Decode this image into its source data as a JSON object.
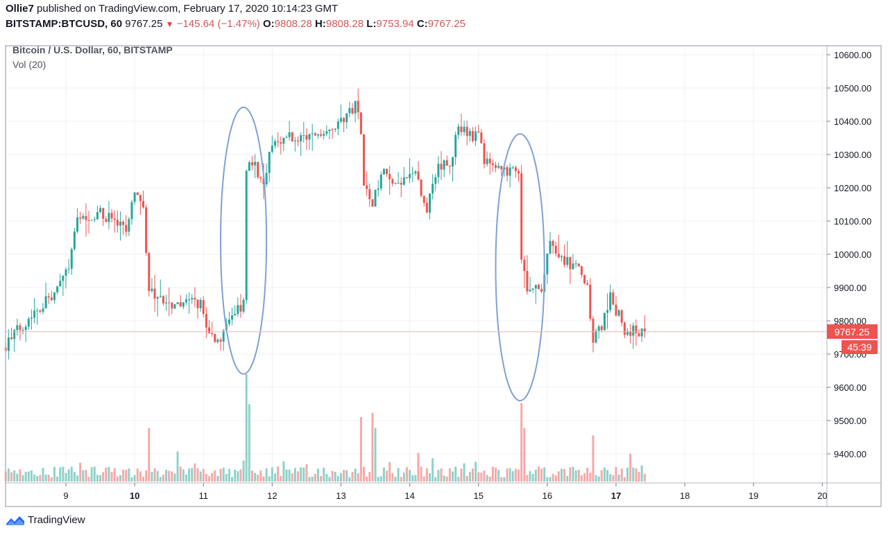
{
  "header": {
    "author": "Ollie7",
    "published_text": "published on TradingView.com, February 17, 2020 10:14:23 GMT",
    "symbol": "BITSTAMP:BTCUSD, 60",
    "last": "9767.25",
    "direction_icon": "triangle-down-icon",
    "change": "−145.64 (−1.47%)",
    "o_label": "O:",
    "o": "9808.28",
    "h_label": "H:",
    "h": "9808.28",
    "l_label": "L:",
    "l": "9753.94",
    "c_label": "C:",
    "c": "9767.25"
  },
  "legend": {
    "title": "Bitcoin / U.S. Dollar, 60, BITSTAMP",
    "volume": "Vol (20)"
  },
  "price_label": "9767.25",
  "countdown": "45:39",
  "footer": {
    "brand": "TradingView"
  },
  "colors": {
    "up": "#26a69a",
    "down": "#ef5350",
    "up_volume": "#8fd1c9",
    "down_volume": "#f5a9a8",
    "annotation": "#7f9fd6",
    "last_price": "#ef5350",
    "grid": "#eef1f5"
  },
  "chart_data": {
    "type": "candlestick",
    "interval": "60",
    "ylim": [
      9320,
      10650
    ],
    "y_ticks": [
      "10600.00",
      "10500.00",
      "10400.00",
      "10300.00",
      "10200.00",
      "10100.00",
      "10000.00",
      "9900.00",
      "9800.00",
      "9700.00",
      "9600.00",
      "9500.00",
      "9400.00"
    ],
    "x_ticks": [
      "9",
      "10",
      "11",
      "12",
      "13",
      "14",
      "15",
      "16",
      "17",
      "18",
      "19",
      "20"
    ],
    "x_range": [
      "2020-02-08 03:00",
      "2020-02-20 00:00"
    ],
    "grid": true,
    "last_price": 9767.25,
    "close_path": [
      [
        "2020-02-08 03:00",
        9730
      ],
      [
        "2020-02-08 13:00",
        9830
      ],
      [
        "2020-02-08 20:00",
        9880
      ],
      [
        "2020-02-09 01:00",
        9960
      ],
      [
        "2020-02-09 04:00",
        10100
      ],
      [
        "2020-02-09 07:00",
        10120
      ],
      [
        "2020-02-09 13:00",
        10120
      ],
      [
        "2020-02-09 21:00",
        10070
      ],
      [
        "2020-02-10 00:00",
        10190
      ],
      [
        "2020-02-10 03:00",
        10130
      ],
      [
        "2020-02-10 05:00",
        9900
      ],
      [
        "2020-02-10 07:00",
        9870
      ],
      [
        "2020-02-10 10:00",
        9850
      ],
      [
        "2020-02-10 16:00",
        9850
      ],
      [
        "2020-02-10 23:00",
        9850
      ],
      [
        "2020-02-11 02:00",
        9760
      ],
      [
        "2020-02-11 06:00",
        9740
      ],
      [
        "2020-02-11 11:00",
        9820
      ],
      [
        "2020-02-11 14:00",
        9860
      ],
      [
        "2020-02-11 15:00",
        10240
      ],
      [
        "2020-02-11 16:00",
        10280
      ],
      [
        "2020-02-11 21:00",
        10230
      ],
      [
        "2020-02-12 00:00",
        10330
      ],
      [
        "2020-02-12 06:00",
        10360
      ],
      [
        "2020-02-12 11:00",
        10340
      ],
      [
        "2020-02-12 18:00",
        10380
      ],
      [
        "2020-02-13 02:00",
        10410
      ],
      [
        "2020-02-13 05:00",
        10460
      ],
      [
        "2020-02-13 07:00",
        10380
      ],
      [
        "2020-02-13 08:00",
        10200
      ],
      [
        "2020-02-13 11:00",
        10150
      ],
      [
        "2020-02-13 15:00",
        10250
      ],
      [
        "2020-02-13 19:00",
        10200
      ],
      [
        "2020-02-14 02:00",
        10240
      ],
      [
        "2020-02-14 06:00",
        10120
      ],
      [
        "2020-02-14 09:00",
        10250
      ],
      [
        "2020-02-14 14:00",
        10280
      ],
      [
        "2020-02-14 17:00",
        10370
      ],
      [
        "2020-02-15 00:00",
        10350
      ],
      [
        "2020-02-15 02:00",
        10280
      ],
      [
        "2020-02-15 07:00",
        10250
      ],
      [
        "2020-02-15 14:00",
        10240
      ],
      [
        "2020-02-15 15:00",
        9990
      ],
      [
        "2020-02-15 17:00",
        9900
      ],
      [
        "2020-02-15 22:00",
        9900
      ],
      [
        "2020-02-16 01:00",
        10030
      ],
      [
        "2020-02-16 05:00",
        9990
      ],
      [
        "2020-02-16 10:00",
        9960
      ],
      [
        "2020-02-16 14:00",
        9900
      ],
      [
        "2020-02-16 16:00",
        9750
      ],
      [
        "2020-02-16 19:00",
        9780
      ],
      [
        "2020-02-16 22:00",
        9880
      ],
      [
        "2020-02-17 00:00",
        9830
      ],
      [
        "2020-02-17 04:00",
        9760
      ],
      [
        "2020-02-17 07:00",
        9770
      ],
      [
        "2020-02-17 10:00",
        9767.25
      ]
    ],
    "volume_spikes_relative": [
      [
        "2020-02-10 05:00",
        50
      ],
      [
        "2020-02-11 15:00",
        100
      ],
      [
        "2020-02-11 16:00",
        72
      ],
      [
        "2020-02-13 07:00",
        60
      ],
      [
        "2020-02-13 11:00",
        64
      ],
      [
        "2020-02-13 12:00",
        50
      ],
      [
        "2020-02-15 15:00",
        73
      ],
      [
        "2020-02-15 16:00",
        50
      ],
      [
        "2020-02-16 16:00",
        43
      ]
    ],
    "annotations": [
      {
        "type": "ellipse",
        "time": [
          "2020-02-11 06:00",
          "2020-02-11 22:00"
        ],
        "price": [
          9640,
          10442
        ]
      },
      {
        "type": "ellipse",
        "time": [
          "2020-02-15 06:00",
          "2020-02-15 23:00"
        ],
        "price": [
          9560,
          10362
        ]
      }
    ]
  }
}
